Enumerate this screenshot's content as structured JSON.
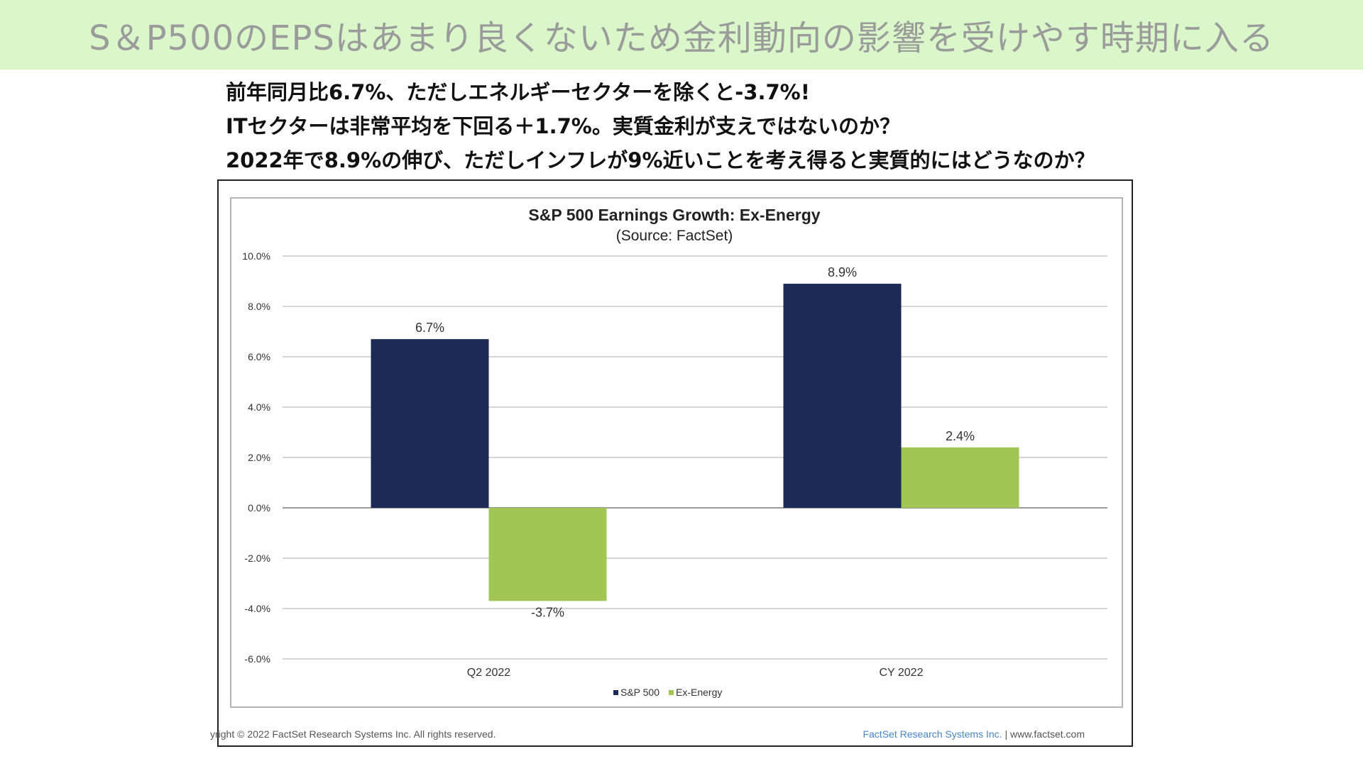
{
  "banner": {
    "title": "S＆P500のEPSはあまり良くないため金利動向の影響を受けやす時期に入る",
    "background": "#d9f7c9"
  },
  "notes": [
    "前年同月比6.7%、ただしエネルギーセクターを除くと-3.7%!",
    "ITセクターは非常平均を下回る＋1.7%。実質金利が支えではないのか？",
    "2022年で8.9%の伸び、ただしインフレが9%近いことを考え得ると実質的にはどうなのか？"
  ],
  "chart_data": {
    "type": "bar",
    "title": "S&P 500 Earnings Growth: Ex-Energy",
    "subtitle": "(Source: FactSet)",
    "categories": [
      "Q2 2022",
      "CY 2022"
    ],
    "series": [
      {
        "name": "S&P 500",
        "values": [
          6.7,
          8.9
        ],
        "labels": [
          "6.7%",
          "8.9%"
        ],
        "color": "#1c2a56"
      },
      {
        "name": "Ex-Energy",
        "values": [
          -3.7,
          2.4
        ],
        "labels": [
          "-3.7%",
          "2.4%"
        ],
        "color": "#a2c653"
      }
    ],
    "yticks": [
      10,
      8,
      6,
      4,
      2,
      0,
      -2,
      -4,
      -6
    ],
    "ytick_labels": [
      "10.0%",
      "8.0%",
      "6.0%",
      "4.0%",
      "2.0%",
      "0.0%",
      "-2.0%",
      "-4.0%",
      "-6.0%"
    ],
    "ylim": [
      -6,
      10
    ],
    "grid": true,
    "legend_position": "bottom-center"
  },
  "footer": {
    "copyright": "yright © 2022 FactSet Research Systems Inc. All rights reserved.",
    "brand": "FactSet Research Systems Inc.",
    "separator": "|",
    "url": "www.factset.com"
  }
}
